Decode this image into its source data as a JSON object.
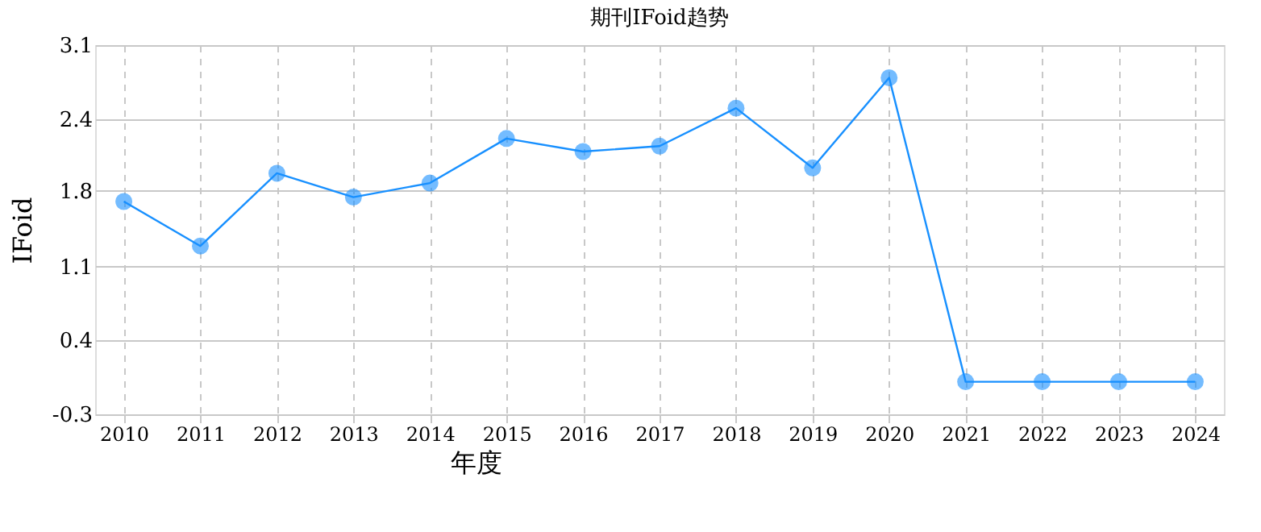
{
  "chart_data": {
    "type": "line",
    "title": "期刊IFoid趋势",
    "xlabel": "年度",
    "ylabel": "IFoid",
    "categories": [
      "2010",
      "2011",
      "2012",
      "2013",
      "2014",
      "2015",
      "2016",
      "2017",
      "2018",
      "2019",
      "2020",
      "2021",
      "2022",
      "2023",
      "2024"
    ],
    "series": [
      {
        "color": "#1890ff",
        "values": [
          1.66,
          1.25,
          1.92,
          1.7,
          1.83,
          2.24,
          2.12,
          2.17,
          2.52,
          1.97,
          2.8,
          0,
          0,
          0,
          0
        ]
      }
    ],
    "ylim": [
      -0.3,
      3.1
    ],
    "yticks": [
      {
        "value": -0.3,
        "label": "-0.3"
      },
      {
        "value": 0.38,
        "label": "0.4"
      },
      {
        "value": 1.06,
        "label": "1.1"
      },
      {
        "value": 1.76,
        "label": "1.8"
      },
      {
        "value": 2.42,
        "label": "2.4"
      },
      {
        "value": 3.1,
        "label": "3.1"
      }
    ],
    "grid": true,
    "marker": "circle",
    "line_style": "solid"
  }
}
